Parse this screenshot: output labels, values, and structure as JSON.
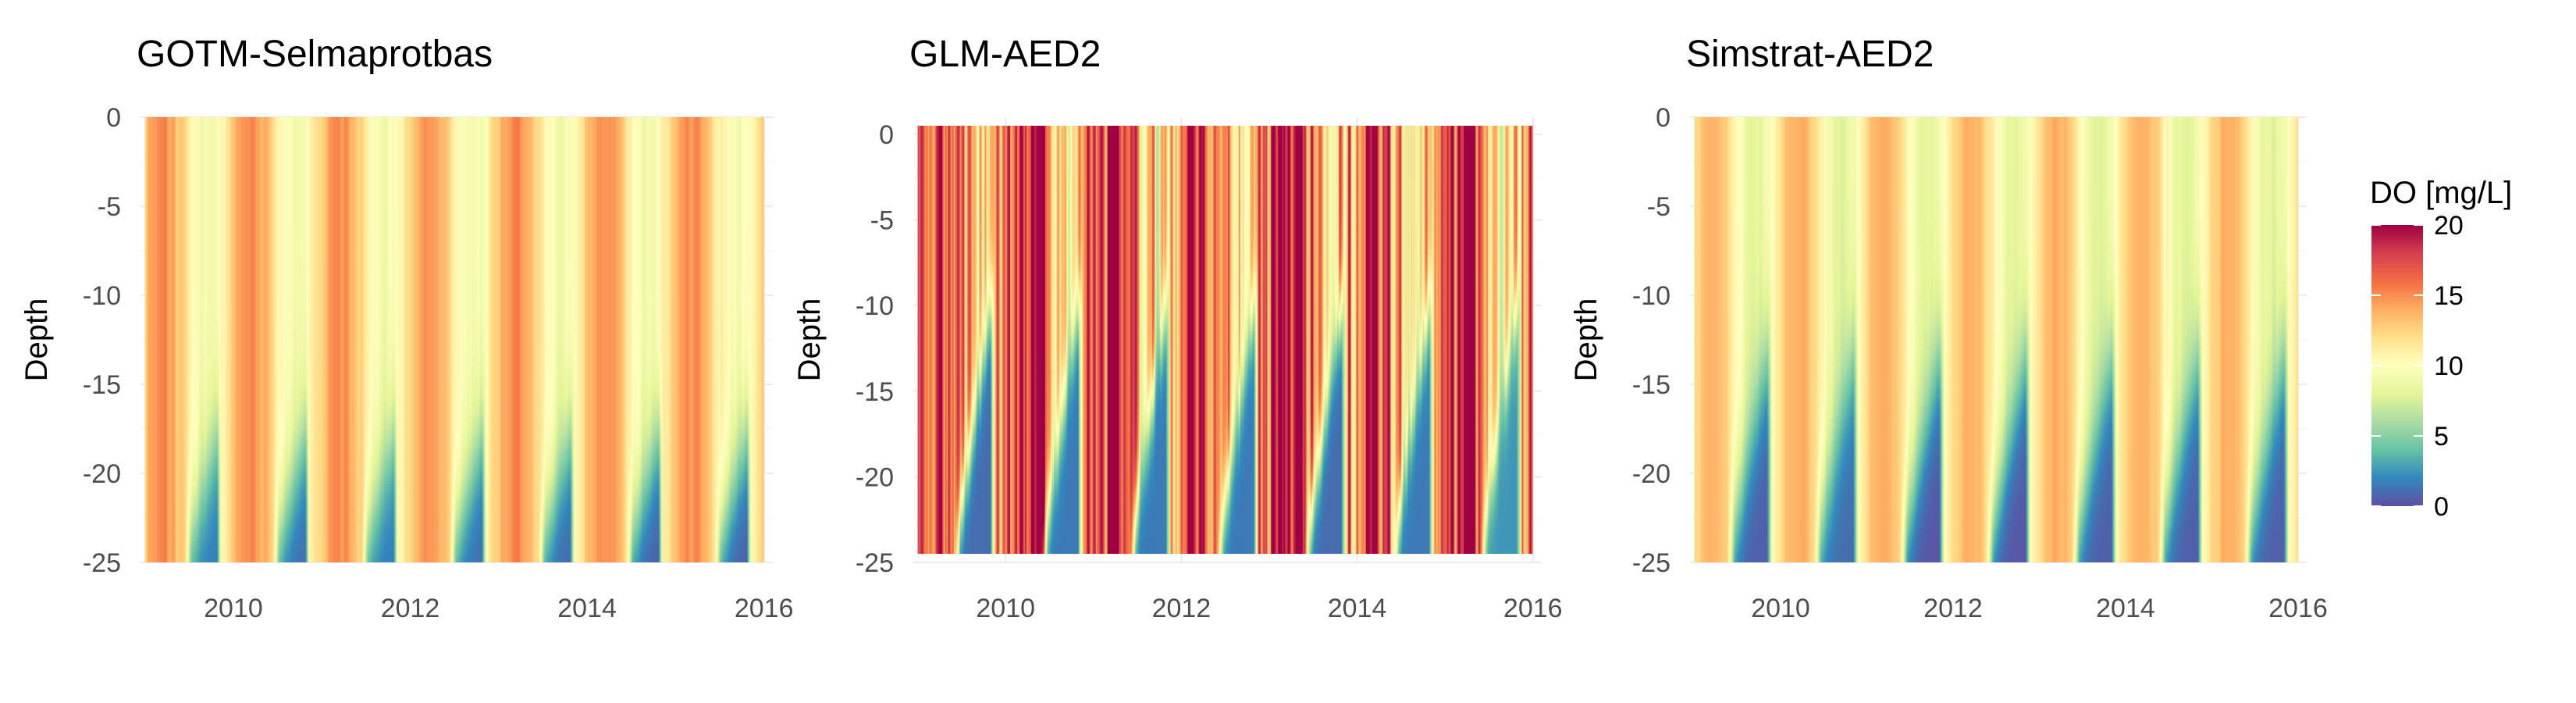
{
  "chart_data": [
    {
      "type": "heatmap",
      "title": "GOTM-Selmaprotbas",
      "xlabel": "",
      "ylabel": "Depth",
      "xlim": [
        2008.95,
        2016.1
      ],
      "ylim": [
        -25,
        0
      ],
      "x_ticks": [
        2010,
        2012,
        2014,
        2016
      ],
      "x_tick_labels": [
        "2010",
        "2012",
        "2014",
        "2016"
      ],
      "y_ticks": [
        0,
        -5,
        -10,
        -15,
        -20,
        -25
      ],
      "y_tick_labels": [
        "0",
        "-5",
        "-10",
        "-15",
        "-20",
        "-25"
      ],
      "x_range": [
        2009.0,
        2016.0
      ],
      "depth_range": [
        0,
        -25
      ],
      "z_label": "DO [mg/L]",
      "approx_summer_bottom_do_mg_per_l": [
        1.5,
        1.0,
        1.5,
        1.0,
        0.8,
        0.5,
        0.5
      ],
      "approx_surface_do_range_mg_per_l": [
        9,
        15
      ]
    },
    {
      "type": "heatmap",
      "title": "GLM-AED2",
      "xlabel": "",
      "ylabel": "Depth",
      "xlim": [
        2008.95,
        2016.1
      ],
      "ylim": [
        -25,
        1
      ],
      "x_ticks": [
        2010,
        2012,
        2014,
        2016
      ],
      "x_tick_labels": [
        "2010",
        "2012",
        "2014",
        "2016"
      ],
      "y_ticks": [
        0,
        -5,
        -10,
        -15,
        -20,
        -25
      ],
      "y_tick_labels": [
        "0",
        "-5",
        "-10",
        "-15",
        "-20",
        "-25"
      ],
      "x_range": [
        2009.0,
        2016.0
      ],
      "depth_range": [
        0.5,
        -24.5
      ],
      "z_label": "DO [mg/L]",
      "approx_summer_bottom_do_mg_per_l": [
        1.0,
        1.5,
        1.5,
        1.5,
        1.0,
        1.5,
        2.5
      ],
      "approx_surface_do_range_mg_per_l": [
        10,
        18
      ]
    },
    {
      "type": "heatmap",
      "title": "Simstrat-AED2",
      "xlabel": "",
      "ylabel": "Depth",
      "xlim": [
        2008.95,
        2016.1
      ],
      "ylim": [
        -25,
        0
      ],
      "x_ticks": [
        2010,
        2012,
        2014,
        2016
      ],
      "x_tick_labels": [
        "2010",
        "2012",
        "2014",
        "2016"
      ],
      "y_ticks": [
        0,
        -5,
        -10,
        -15,
        -20,
        -25
      ],
      "y_tick_labels": [
        "0",
        "-5",
        "-10",
        "-15",
        "-20",
        "-25"
      ],
      "x_range": [
        2009.0,
        2016.0
      ],
      "depth_range": [
        0,
        -25
      ],
      "z_label": "DO [mg/L]",
      "approx_summer_bottom_do_mg_per_l": [
        0.5,
        1.0,
        0.2,
        0.2,
        0.5,
        0.5,
        0.5
      ],
      "approx_surface_do_range_mg_per_l": [
        8,
        14
      ]
    }
  ],
  "legend": {
    "title": "DO [mg/L]",
    "limits": [
      0,
      20
    ],
    "ticks": [
      0,
      5,
      10,
      15,
      20
    ],
    "tick_labels": [
      "0",
      "5",
      "10",
      "15",
      "20"
    ],
    "colormap": "Spectral (reversed)",
    "colors": [
      "#5E4FA2",
      "#3288BD",
      "#66C2A5",
      "#ABDDA4",
      "#E6F598",
      "#FFFFBF",
      "#FEE08B",
      "#FDAE61",
      "#F46D43",
      "#D53E4F",
      "#9E0142"
    ],
    "placement": "right"
  }
}
